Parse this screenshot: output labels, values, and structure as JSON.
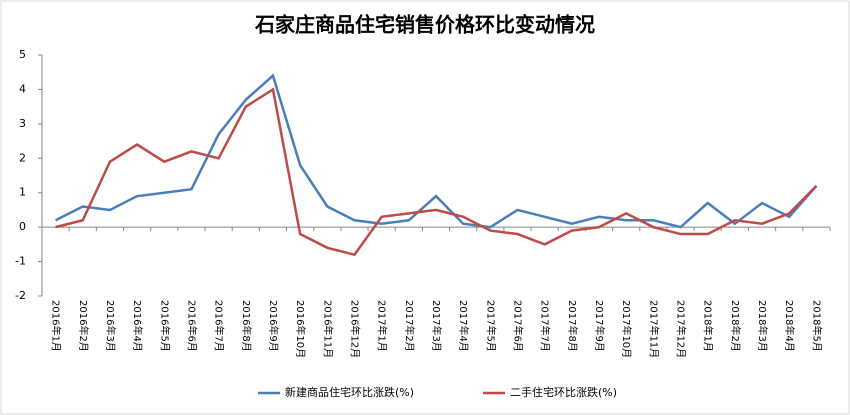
{
  "chart_data": {
    "type": "line",
    "title": "石家庄商品住宅销售价格环比变动情况",
    "categories": [
      "2016年1月",
      "2016年2月",
      "2016年3月",
      "2016年4月",
      "2016年5月",
      "2016年6月",
      "2016年7月",
      "2016年8月",
      "2016年9月",
      "2016年10月",
      "2016年11月",
      "2016年12月",
      "2017年1月",
      "2017年2月",
      "2017年3月",
      "2017年4月",
      "2017年5月",
      "2017年6月",
      "2017年7月",
      "2017年8月",
      "2017年9月",
      "2017年10月",
      "2017年11月",
      "2017年12月",
      "2018年1月",
      "2018年2月",
      "2018年3月",
      "2018年4月",
      "2018年5月"
    ],
    "series": [
      {
        "name": "新建商品住宅环比涨跌(%)",
        "color": "#4a7ebb",
        "values": [
          0.2,
          0.6,
          0.5,
          0.9,
          1.0,
          1.1,
          2.7,
          3.7,
          4.4,
          1.8,
          0.6,
          0.2,
          0.1,
          0.2,
          0.9,
          0.1,
          0.0,
          0.5,
          0.3,
          0.1,
          0.3,
          0.2,
          0.2,
          0.0,
          0.7,
          0.1,
          0.7,
          0.3,
          1.2
        ]
      },
      {
        "name": "二手住宅环比涨跌(%)",
        "color": "#be4b48",
        "values": [
          0.0,
          0.2,
          1.9,
          2.4,
          1.9,
          2.2,
          2.0,
          3.5,
          4.0,
          -0.2,
          -0.6,
          -0.8,
          0.3,
          0.4,
          0.5,
          0.3,
          -0.1,
          -0.2,
          -0.5,
          -0.1,
          0.0,
          0.4,
          0.0,
          -0.2,
          -0.2,
          0.2,
          0.1,
          0.4,
          1.2
        ]
      }
    ],
    "ylim": [
      -2,
      5
    ],
    "yticks": [
      -2,
      -1,
      0,
      1,
      2,
      3,
      4,
      5
    ],
    "grid": false
  }
}
